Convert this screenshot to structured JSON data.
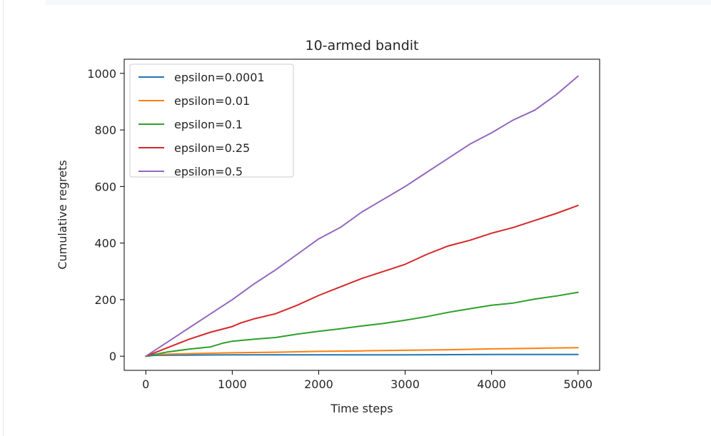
{
  "chart_data": {
    "type": "line",
    "title": "10-armed bandit",
    "xlabel": "Time steps",
    "ylabel": "Cumulative regrets",
    "xlim": [
      -250,
      5250
    ],
    "ylim": [
      -50,
      1050
    ],
    "xticks": [
      0,
      1000,
      2000,
      3000,
      4000,
      5000
    ],
    "yticks": [
      0,
      200,
      400,
      600,
      800,
      1000
    ],
    "legend_position": "upper-left",
    "grid": false,
    "series": [
      {
        "name": "epsilon=0.0001",
        "color": "#1f77b4",
        "x": [
          0,
          100,
          500,
          1000,
          2000,
          3000,
          4000,
          5000
        ],
        "y": [
          0,
          3,
          4,
          5,
          5,
          5,
          6,
          6
        ]
      },
      {
        "name": "epsilon=0.01",
        "color": "#ff7f0e",
        "x": [
          0,
          100,
          500,
          1000,
          1500,
          2000,
          2500,
          3000,
          3500,
          4000,
          4500,
          5000
        ],
        "y": [
          0,
          6,
          9,
          12,
          14,
          17,
          19,
          21,
          23,
          26,
          28,
          30
        ]
      },
      {
        "name": "epsilon=0.1",
        "color": "#2ca02c",
        "x": [
          0,
          250,
          500,
          750,
          900,
          1000,
          1250,
          1500,
          1750,
          2000,
          2250,
          2500,
          2750,
          3000,
          3250,
          3500,
          3750,
          4000,
          4250,
          4500,
          4750,
          5000
        ],
        "y": [
          0,
          15,
          25,
          33,
          47,
          53,
          60,
          66,
          78,
          88,
          97,
          107,
          116,
          127,
          140,
          155,
          168,
          180,
          188,
          202,
          213,
          226
        ]
      },
      {
        "name": "epsilon=0.25",
        "color": "#d62728",
        "x": [
          0,
          250,
          500,
          750,
          1000,
          1100,
          1250,
          1500,
          1750,
          2000,
          2250,
          2500,
          2750,
          3000,
          3250,
          3500,
          3750,
          4000,
          4250,
          4500,
          4750,
          5000
        ],
        "y": [
          0,
          30,
          60,
          85,
          105,
          118,
          132,
          150,
          180,
          215,
          245,
          275,
          300,
          325,
          360,
          390,
          410,
          435,
          455,
          480,
          505,
          533
        ]
      },
      {
        "name": "epsilon=0.5",
        "color": "#9467bd",
        "x": [
          0,
          250,
          500,
          750,
          1000,
          1250,
          1500,
          1750,
          2000,
          2250,
          2500,
          2750,
          3000,
          3250,
          3500,
          3750,
          4000,
          4250,
          4500,
          4750,
          5000
        ],
        "y": [
          0,
          50,
          100,
          150,
          200,
          255,
          305,
          360,
          415,
          455,
          510,
          555,
          600,
          650,
          700,
          750,
          790,
          835,
          870,
          925,
          990
        ]
      }
    ]
  }
}
